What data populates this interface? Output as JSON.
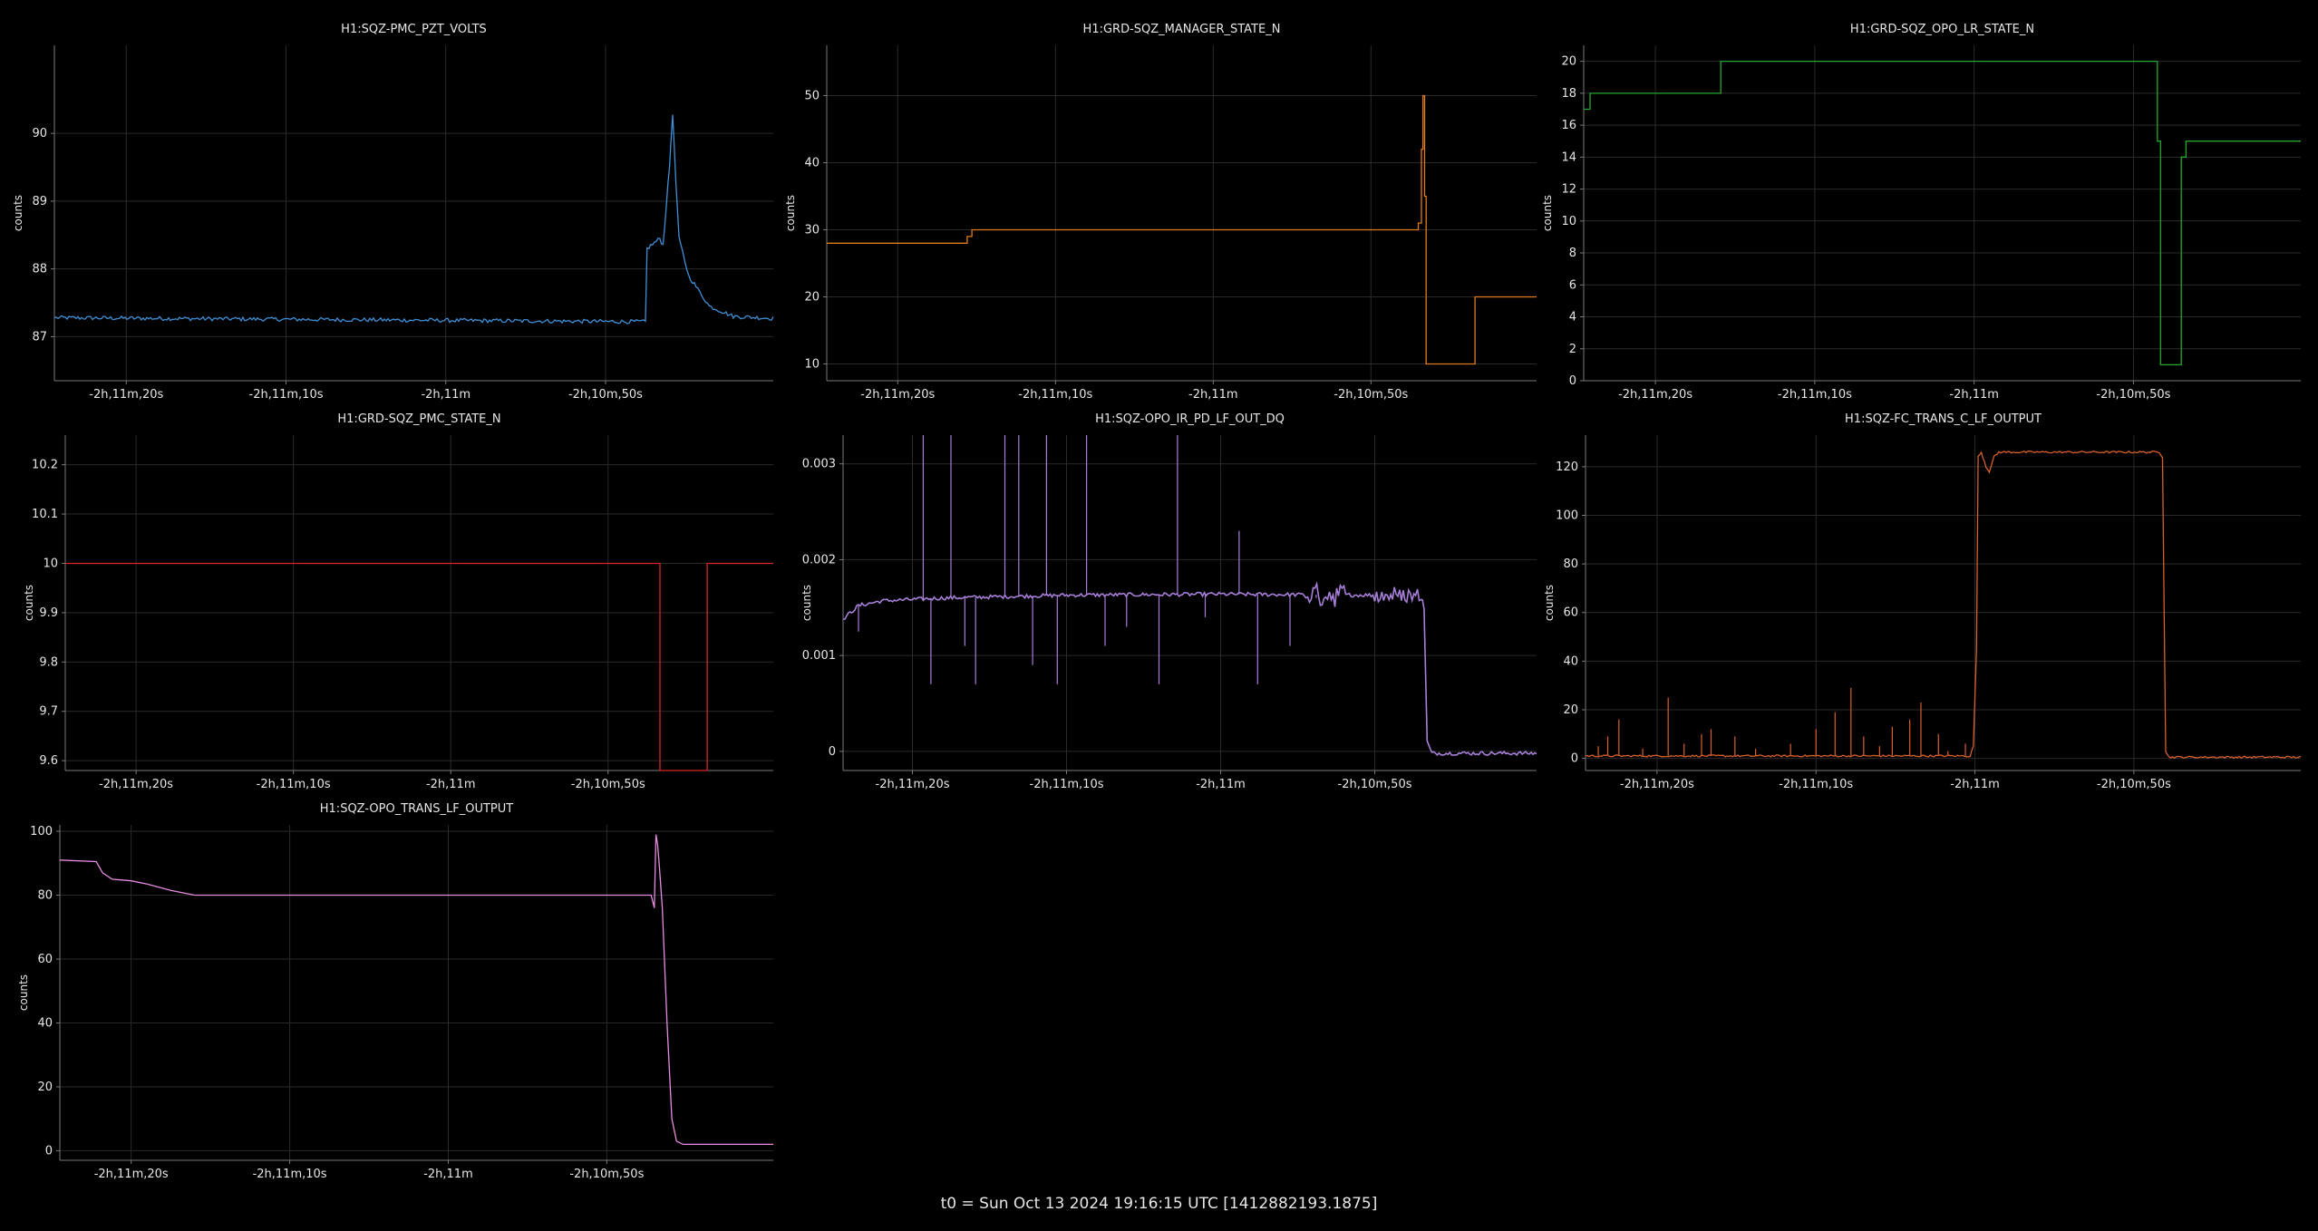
{
  "app": {
    "footer": "t0 = Sun Oct 13 2024 19:16:15 UTC [1412882193.1875]"
  },
  "style": {
    "background": "#000000",
    "grid_color": "#2a2a2a",
    "axis_color": "#7a7a7a",
    "text_color": "#e6e6e6"
  },
  "chart_data": [
    {
      "type": "line",
      "title": "H1:SQZ-PMC_PZT_VOLTS",
      "ylabel": "counts",
      "color": "#3f8fd6",
      "x_ticks": [
        {
          "x": -80,
          "label": "-2h,11m,20s"
        },
        {
          "x": -70,
          "label": "-2h,11m,10s"
        },
        {
          "x": -60,
          "label": "-2h,11m"
        },
        {
          "x": -50,
          "label": "-2h,10m,50s"
        }
      ],
      "xlim": [
        -84.5,
        -39.5
      ],
      "ylim": [
        86.35,
        91.3
      ],
      "y_ticks": [
        87,
        88,
        89,
        90
      ],
      "noise": 0.03,
      "points": [
        [
          -84.5,
          87.28
        ],
        [
          -47.5,
          87.22
        ],
        [
          -47.4,
          88.3
        ],
        [
          -46.6,
          88.45
        ],
        [
          -46.4,
          88.35
        ],
        [
          -46.0,
          89.5
        ],
        [
          -45.8,
          90.3
        ],
        [
          -45.6,
          89.3
        ],
        [
          -45.4,
          88.45
        ],
        [
          -44.8,
          87.9
        ],
        [
          -43.5,
          87.45
        ],
        [
          -42.0,
          87.3
        ],
        [
          -39.5,
          87.27
        ]
      ]
    },
    {
      "type": "line",
      "title": "H1:GRD-SQZ_MANAGER_STATE_N",
      "ylabel": "counts",
      "color": "#e07b1d",
      "x_ticks": [
        {
          "x": -80,
          "label": "-2h,11m,20s"
        },
        {
          "x": -70,
          "label": "-2h,11m,10s"
        },
        {
          "x": -60,
          "label": "-2h,11m"
        },
        {
          "x": -50,
          "label": "-2h,10m,50s"
        }
      ],
      "xlim": [
        -84.5,
        -39.5
      ],
      "ylim": [
        7.5,
        57.5
      ],
      "y_ticks": [
        10,
        20,
        30,
        40,
        50
      ],
      "noise": 0,
      "points": [
        [
          -84.5,
          28
        ],
        [
          -75.6,
          28
        ],
        [
          -75.6,
          29
        ],
        [
          -75.3,
          29
        ],
        [
          -75.3,
          30
        ],
        [
          -47.0,
          30
        ],
        [
          -47.0,
          31
        ],
        [
          -46.8,
          31
        ],
        [
          -46.8,
          42
        ],
        [
          -46.7,
          42
        ],
        [
          -46.7,
          50
        ],
        [
          -46.6,
          50
        ],
        [
          -46.6,
          35
        ],
        [
          -46.5,
          35
        ],
        [
          -46.5,
          10
        ],
        [
          -43.4,
          10
        ],
        [
          -43.4,
          20
        ],
        [
          -39.5,
          20
        ]
      ]
    },
    {
      "type": "line",
      "title": "H1:GRD-SQZ_OPO_LR_STATE_N",
      "ylabel": "counts",
      "color": "#22a82c",
      "x_ticks": [
        {
          "x": -80,
          "label": "-2h,11m,20s"
        },
        {
          "x": -70,
          "label": "-2h,11m,10s"
        },
        {
          "x": -60,
          "label": "-2h,11m"
        },
        {
          "x": -50,
          "label": "-2h,10m,50s"
        }
      ],
      "xlim": [
        -84.5,
        -39.5
      ],
      "ylim": [
        0,
        21
      ],
      "y_ticks": [
        0,
        2,
        4,
        6,
        8,
        10,
        12,
        14,
        16,
        18,
        20
      ],
      "noise": 0,
      "points": [
        [
          -84.5,
          17
        ],
        [
          -84.1,
          17
        ],
        [
          -84.1,
          18
        ],
        [
          -75.9,
          18
        ],
        [
          -75.9,
          20
        ],
        [
          -48.5,
          20
        ],
        [
          -48.5,
          15
        ],
        [
          -48.3,
          15
        ],
        [
          -48.3,
          1
        ],
        [
          -47.0,
          1
        ],
        [
          -47.0,
          14
        ],
        [
          -46.7,
          14
        ],
        [
          -46.7,
          15
        ],
        [
          -39.5,
          15
        ]
      ]
    },
    {
      "type": "line",
      "title": "H1:GRD-SQZ_PMC_STATE_N",
      "ylabel": "counts",
      "color": "#d6262b",
      "x_ticks": [
        {
          "x": -80,
          "label": "-2h,11m,20s"
        },
        {
          "x": -70,
          "label": "-2h,11m,10s"
        },
        {
          "x": -60,
          "label": "-2h,11m"
        },
        {
          "x": -50,
          "label": "-2h,10m,50s"
        }
      ],
      "xlim": [
        -84.5,
        -39.5
      ],
      "ylim": [
        9.58,
        10.26
      ],
      "y_ticks": [
        9.6,
        9.7,
        9.8,
        9.9,
        10,
        10.1,
        10.2
      ],
      "noise": 0,
      "points": [
        [
          -84.5,
          10
        ],
        [
          -46.7,
          10
        ],
        [
          -46.7,
          9.5
        ],
        [
          -43.7,
          9.5
        ],
        [
          -43.7,
          10
        ],
        [
          -39.5,
          10
        ]
      ]
    },
    {
      "type": "line",
      "title": "H1:SQZ-OPO_IR_PD_LF_OUT_DQ",
      "ylabel": "counts",
      "color": "#a77fd9",
      "x_ticks": [
        {
          "x": -80,
          "label": "-2h,11m,20s"
        },
        {
          "x": -70,
          "label": "-2h,11m,10s"
        },
        {
          "x": -60,
          "label": "-2h,11m"
        },
        {
          "x": -50,
          "label": "-2h,10m,50s"
        }
      ],
      "xlim": [
        -84.5,
        -39.5
      ],
      "ylim": [
        -0.0002,
        0.0033
      ],
      "y_ticks": [
        0,
        0.001,
        0.002,
        0.003
      ],
      "noise": 2e-05,
      "points": [
        [
          -84.5,
          0.00138
        ],
        [
          -83.5,
          0.00152
        ],
        [
          -82,
          0.00157
        ],
        [
          -78,
          0.0016
        ],
        [
          -70,
          0.00163
        ],
        [
          -60,
          0.00164
        ],
        [
          -50,
          0.00163
        ],
        [
          -47.0,
          0.00163
        ],
        [
          -46.8,
          0.0015
        ],
        [
          -46.6,
          0.0001
        ],
        [
          -46.3,
          -2e-05
        ],
        [
          -39.5,
          -2e-05
        ]
      ],
      "spikes": [
        [
          -83.5,
          0.00125
        ],
        [
          -79.3,
          0.0033
        ],
        [
          -78.8,
          0.0007
        ],
        [
          -77.5,
          0.0033
        ],
        [
          -76.6,
          0.0011
        ],
        [
          -75.9,
          0.0007
        ],
        [
          -74.0,
          0.0033
        ],
        [
          -73.1,
          0.0033
        ],
        [
          -72.2,
          0.0009
        ],
        [
          -71.3,
          0.0033
        ],
        [
          -70.6,
          0.0007
        ],
        [
          -68.7,
          0.0033
        ],
        [
          -67.5,
          0.0011
        ],
        [
          -66.1,
          0.0013
        ],
        [
          -64.0,
          0.0007
        ],
        [
          -62.8,
          0.0033
        ],
        [
          -61.0,
          0.0014
        ],
        [
          -58.8,
          0.0023
        ],
        [
          -57.6,
          0.0007
        ],
        [
          -55.5,
          0.0011
        ],
        [
          -53.8,
          0.0016
        ]
      ],
      "bursts": [
        [
          -54.5,
          -52.0,
          0.00012
        ],
        [
          -50.0,
          -47.0,
          9e-05
        ]
      ]
    },
    {
      "type": "line",
      "title": "H1:SQZ-FC_TRANS_C_LF_OUTPUT",
      "ylabel": "counts",
      "color": "#d95f2b",
      "x_ticks": [
        {
          "x": -80,
          "label": "-2h,11m,20s"
        },
        {
          "x": -70,
          "label": "-2h,11m,10s"
        },
        {
          "x": -60,
          "label": "-2h,11m"
        },
        {
          "x": -50,
          "label": "-2h,10m,50s"
        }
      ],
      "xlim": [
        -84.5,
        -39.5
      ],
      "ylim": [
        -5,
        133
      ],
      "y_ticks": [
        0,
        20,
        40,
        60,
        80,
        100,
        120
      ],
      "noise": 0.4,
      "points": [
        [
          -84.5,
          1
        ],
        [
          -60.3,
          1
        ],
        [
          -60.1,
          5
        ],
        [
          -59.9,
          45
        ],
        [
          -59.8,
          124
        ],
        [
          -59.6,
          126
        ],
        [
          -59.3,
          120
        ],
        [
          -59.1,
          118
        ],
        [
          -58.8,
          124
        ],
        [
          -58.5,
          126
        ],
        [
          -52.0,
          126
        ],
        [
          -48.4,
          126
        ],
        [
          -48.2,
          124
        ],
        [
          -48.0,
          3
        ],
        [
          -47.8,
          0.5
        ],
        [
          -39.5,
          0.5
        ]
      ],
      "spikes": [
        [
          -83.7,
          5
        ],
        [
          -83.1,
          9
        ],
        [
          -82.4,
          16
        ],
        [
          -80.9,
          4
        ],
        [
          -79.3,
          25
        ],
        [
          -78.3,
          6
        ],
        [
          -77.2,
          10
        ],
        [
          -76.6,
          12
        ],
        [
          -75.1,
          9
        ],
        [
          -73.8,
          4
        ],
        [
          -71.6,
          6
        ],
        [
          -70.0,
          12
        ],
        [
          -68.8,
          19
        ],
        [
          -67.8,
          29
        ],
        [
          -67.0,
          9
        ],
        [
          -66.0,
          5
        ],
        [
          -65.2,
          13
        ],
        [
          -64.1,
          16
        ],
        [
          -63.4,
          23
        ],
        [
          -62.3,
          10
        ],
        [
          -61.7,
          3
        ],
        [
          -60.6,
          6
        ]
      ]
    },
    {
      "type": "line",
      "title": "H1:SQZ-OPO_TRANS_LF_OUTPUT",
      "ylabel": "counts",
      "color": "#e58ce0",
      "x_ticks": [
        {
          "x": -80,
          "label": "-2h,11m,20s"
        },
        {
          "x": -70,
          "label": "-2h,11m,10s"
        },
        {
          "x": -60,
          "label": "-2h,11m"
        },
        {
          "x": -50,
          "label": "-2h,10m,50s"
        }
      ],
      "xlim": [
        -84.5,
        -39.5
      ],
      "ylim": [
        -3,
        102
      ],
      "y_ticks": [
        0,
        20,
        40,
        60,
        80,
        100
      ],
      "noise": 0,
      "points": [
        [
          -84.5,
          91
        ],
        [
          -82.2,
          90.5
        ],
        [
          -81.8,
          87
        ],
        [
          -81.2,
          85
        ],
        [
          -80.0,
          84.5
        ],
        [
          -79.0,
          83.5
        ],
        [
          -77.5,
          81.5
        ],
        [
          -76.0,
          80
        ],
        [
          -75.0,
          80
        ],
        [
          -47.2,
          80
        ],
        [
          -47.0,
          76
        ],
        [
          -46.9,
          99
        ],
        [
          -46.8,
          96
        ],
        [
          -46.7,
          90
        ],
        [
          -46.5,
          76
        ],
        [
          -46.2,
          40
        ],
        [
          -45.9,
          10
        ],
        [
          -45.6,
          3
        ],
        [
          -45.2,
          2
        ],
        [
          -39.5,
          2
        ]
      ]
    }
  ]
}
